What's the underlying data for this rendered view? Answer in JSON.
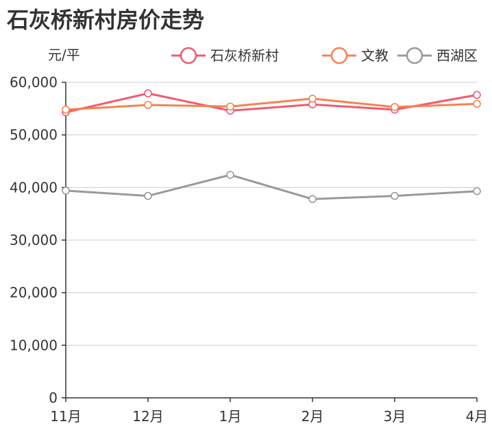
{
  "title": "石灰桥新村房价走势",
  "unit_label": "元/平",
  "chart_data": {
    "type": "line",
    "title": "石灰桥新村房价走势",
    "ylabel": "元/平",
    "xlabel": "",
    "categories": [
      "11月",
      "12月",
      "1月",
      "2月",
      "3月",
      "4月"
    ],
    "ylim": [
      0,
      60000
    ],
    "yticks": [
      0,
      10000,
      20000,
      30000,
      40000,
      50000,
      60000
    ],
    "ytick_labels": [
      "0",
      "10,000",
      "20,000",
      "30,000",
      "40,000",
      "50,000",
      "60,000"
    ],
    "grid": true,
    "legend_position": "top-right",
    "series": [
      {
        "name": "石灰桥新村",
        "color": "#f25a6e",
        "values": [
          54300,
          57900,
          54600,
          55800,
          54800,
          57600
        ]
      },
      {
        "name": "文教",
        "color": "#f5834f",
        "values": [
          54800,
          55700,
          55400,
          56900,
          55300,
          55900
        ]
      },
      {
        "name": "西湖区",
        "color": "#999999",
        "values": [
          39400,
          38400,
          42400,
          37800,
          38400,
          39300
        ]
      }
    ]
  }
}
